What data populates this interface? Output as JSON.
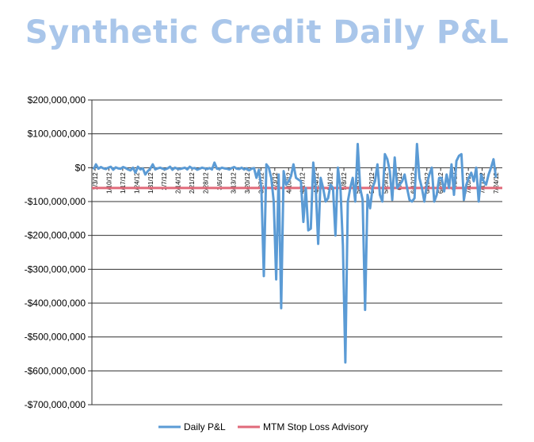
{
  "chart_data": {
    "type": "line",
    "title": "Synthetic Credit Daily P&L",
    "xlabel": "",
    "ylabel": "",
    "ylim": [
      -700000000,
      200000000
    ],
    "y_ticks": [
      200000000,
      100000000,
      0,
      -100000000,
      -200000000,
      -300000000,
      -400000000,
      -500000000,
      -600000000,
      -700000000
    ],
    "y_tick_labels": [
      "$200,000,000",
      "$100,000,000",
      "$0",
      "-$100,000,000",
      "-$200,000,000",
      "-$300,000,000",
      "-$400,000,000",
      "-$500,000,000",
      "-$600,000,000",
      "-$700,000,000"
    ],
    "x_tick_labels": [
      "1/3/12",
      "1/10/12",
      "1/17/12",
      "1/24/12",
      "1/31/12",
      "2/7/12",
      "2/14/12",
      "2/21/12",
      "2/28/12",
      "3/6/12",
      "3/13/12",
      "3/20/12",
      "3/27/12",
      "4/3/12",
      "4/10/12",
      "4/17/12",
      "4/24/12",
      "5/1/12",
      "5/8/12",
      "5/15/12",
      "5/22/12",
      "5/29/12",
      "6/5/12",
      "6/12/12",
      "6/19/12",
      "6/26/12",
      "7/3/12",
      "7/10/12",
      "7/17/12",
      "7/24/12"
    ],
    "grid": true,
    "legend_position": "bottom",
    "series": [
      {
        "name": "Daily P&L",
        "color": "#5b9bd5",
        "values": [
          -5000000,
          10000000,
          -3000000,
          2000000,
          -2000000,
          -4000000,
          0,
          3000000,
          -6000000,
          1000000,
          -2000000,
          -3000000,
          2000000,
          -1000000,
          -5000000,
          -8000000,
          0,
          -15000000,
          3000000,
          -5000000,
          -2000000,
          -20000000,
          -10000000,
          -3000000,
          10000000,
          -5000000,
          -2000000,
          0,
          -3000000,
          -5000000,
          -2000000,
          3000000,
          -6000000,
          0,
          -3000000,
          -4000000,
          -2000000,
          0,
          -5000000,
          3000000,
          -2000000,
          -1000000,
          -6000000,
          -3000000,
          0,
          -2000000,
          -4000000,
          -1000000,
          -5000000,
          15000000,
          -3000000,
          -4000000,
          0,
          -2000000,
          -3000000,
          -5000000,
          -1000000,
          2000000,
          -3000000,
          -4000000,
          0,
          -5000000,
          -2000000,
          -8000000,
          -3000000,
          -1000000,
          -30000000,
          -6000000,
          -60000000,
          -320000000,
          10000000,
          0,
          -30000000,
          -100000000,
          -330000000,
          -20000000,
          -415000000,
          -10000000,
          -50000000,
          -40000000,
          -25000000,
          10000000,
          -30000000,
          -35000000,
          -40000000,
          -160000000,
          -60000000,
          -185000000,
          -180000000,
          15000000,
          -60000000,
          -225000000,
          -30000000,
          -60000000,
          -100000000,
          -90000000,
          -50000000,
          -60000000,
          -200000000,
          0,
          -60000000,
          -230000000,
          -575000000,
          -100000000,
          -60000000,
          -30000000,
          -100000000,
          70000000,
          -60000000,
          -95000000,
          -420000000,
          -80000000,
          -120000000,
          -60000000,
          -40000000,
          10000000,
          -80000000,
          -100000000,
          40000000,
          25000000,
          -10000000,
          -95000000,
          30000000,
          -60000000,
          -50000000,
          -40000000,
          -20000000,
          -60000000,
          -95000000,
          -100000000,
          -90000000,
          70000000,
          -30000000,
          -60000000,
          -100000000,
          -50000000,
          -20000000,
          0,
          -100000000,
          -80000000,
          -30000000,
          -30000000,
          -70000000,
          -20000000,
          -60000000,
          10000000,
          -80000000,
          20000000,
          35000000,
          40000000,
          -95000000,
          -50000000,
          -30000000,
          -15000000,
          -40000000,
          0,
          -100000000,
          -20000000,
          -40000000,
          -50000000,
          -20000000,
          0,
          25000000,
          -30000000
        ]
      },
      {
        "name": "MTM Stop Loss Advisory",
        "color": "#e06a7a",
        "values": [
          -60000000,
          -60000000
        ]
      }
    ]
  }
}
